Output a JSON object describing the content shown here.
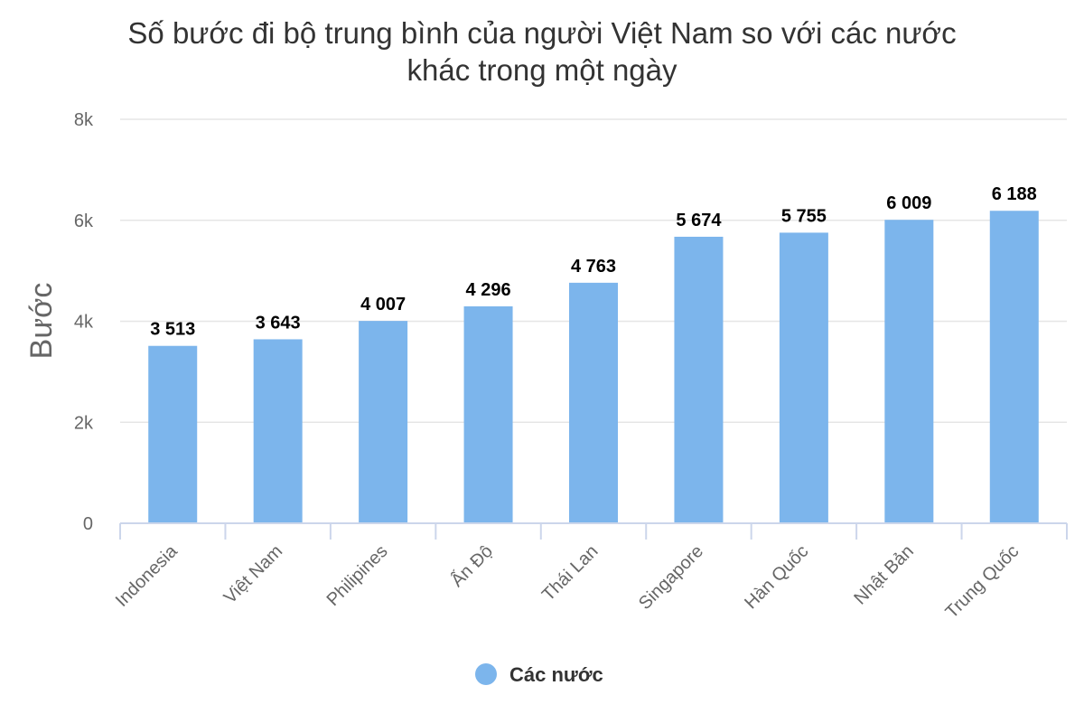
{
  "chart_data": {
    "type": "bar",
    "title_lines": [
      "Số bước đi bộ trung bình của người Việt Nam so với các nước",
      "khác trong một ngày"
    ],
    "ylabel": "Bước",
    "xlabel": "",
    "ylim": [
      0,
      8000
    ],
    "yticks": [
      0,
      2000,
      4000,
      6000,
      8000
    ],
    "ytick_labels": [
      "0",
      "2k",
      "4k",
      "6k",
      "8k"
    ],
    "grid": true,
    "legend_position": "bottom",
    "categories": [
      "Indonesia",
      "Việt Nam",
      "Philipines",
      "Ấn Độ",
      "Thái Lan",
      "Singapore",
      "Hàn Quốc",
      "Nhật Bản",
      "Trung Quốc"
    ],
    "series": [
      {
        "name": "Các nước",
        "color": "#7cb5ec",
        "values": [
          3513,
          3643,
          4007,
          4296,
          4763,
          5674,
          5755,
          6009,
          6188
        ],
        "labels": [
          "3 513",
          "3 643",
          "4 007",
          "4 296",
          "4 763",
          "5 674",
          "5 755",
          "6 009",
          "6 188"
        ]
      }
    ]
  },
  "colors": {
    "bar": "#7cb5ec",
    "grid": "#e6e6e6",
    "axis": "#ccd6eb"
  }
}
